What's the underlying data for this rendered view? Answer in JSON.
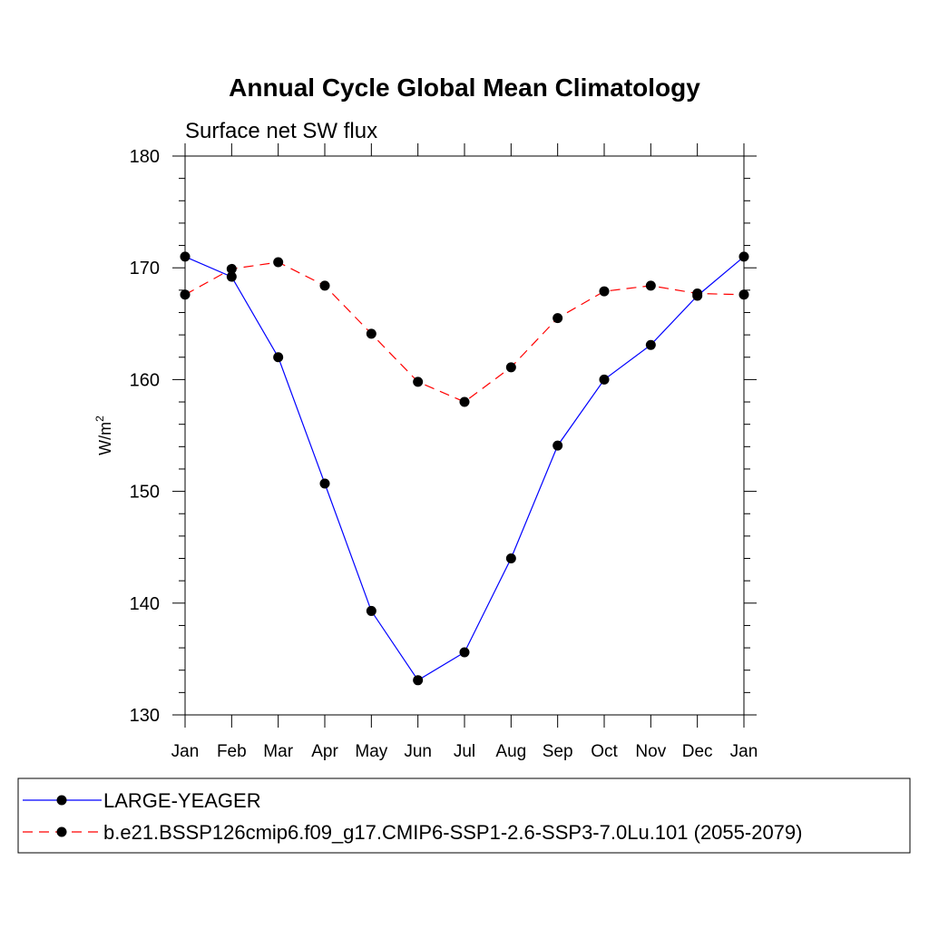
{
  "chart_data": {
    "type": "line",
    "title": "Annual Cycle Global Mean Climatology",
    "subtitle": "Surface net SW flux",
    "ylabel": "W/m",
    "ylabel_superscript": "2",
    "xlabel": "",
    "categories": [
      "Jan",
      "Feb",
      "Mar",
      "Apr",
      "May",
      "Jun",
      "Jul",
      "Aug",
      "Sep",
      "Oct",
      "Nov",
      "Dec",
      "Jan"
    ],
    "ylim": [
      130,
      180
    ],
    "yticks": [
      130,
      140,
      150,
      160,
      170,
      180
    ],
    "grid": false,
    "legend_position": "bottom",
    "series": [
      {
        "name": "LARGE-YEAGER",
        "color": "#0000ff",
        "dash": "solid",
        "marker": "filled-circle",
        "values": [
          171.0,
          169.2,
          162.0,
          150.7,
          139.3,
          133.1,
          135.6,
          144.0,
          154.1,
          160.0,
          163.1,
          167.5,
          171.0
        ]
      },
      {
        "name": "b.e21.BSSP126cmip6.f09_g17.CMIP6-SSP1-2.6-SSP3-7.0Lu.101 (2055-2079)",
        "color": "#ff0000",
        "dash": "dashed",
        "marker": "filled-circle",
        "values": [
          167.6,
          169.9,
          170.5,
          168.4,
          164.1,
          159.8,
          158.0,
          161.1,
          165.5,
          167.9,
          168.4,
          167.7,
          167.6
        ]
      }
    ]
  }
}
